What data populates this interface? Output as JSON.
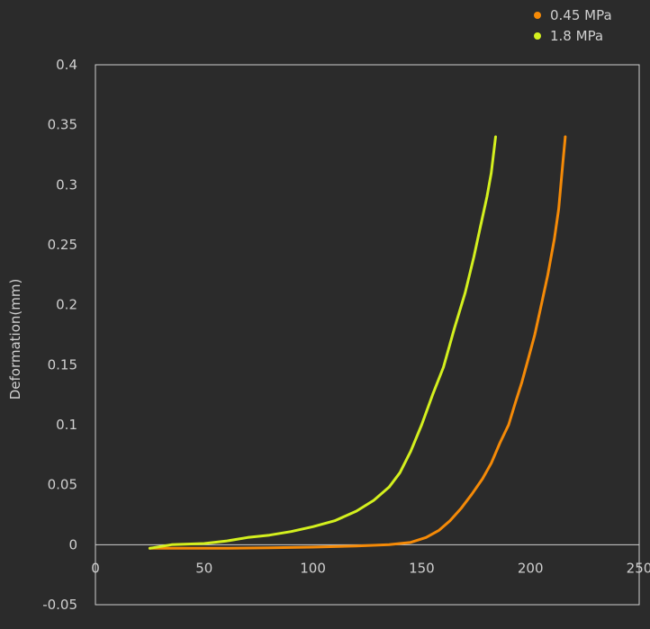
{
  "chart_data": {
    "type": "line",
    "title": "",
    "xlabel": "",
    "ylabel": "Deformation(mm)",
    "xlim": [
      0,
      250
    ],
    "ylim": [
      -0.05,
      0.4
    ],
    "x_ticks": [
      "0",
      "50",
      "100",
      "150",
      "200",
      "250"
    ],
    "y_ticks": [
      "-0.05",
      "0",
      "0.05",
      "0.1",
      "0.15",
      "0.2",
      "0.25",
      "0.3",
      "0.35",
      "0.4"
    ],
    "grid": false,
    "legend_position": "top-right",
    "series": [
      {
        "name": "0.45 MPa",
        "color": "#f58a07",
        "points": [
          [
            25,
            -0.003
          ],
          [
            40,
            -0.003
          ],
          [
            60,
            -0.003
          ],
          [
            80,
            -0.0025
          ],
          [
            100,
            -0.002
          ],
          [
            120,
            -0.001
          ],
          [
            135,
            0
          ],
          [
            145,
            0.002
          ],
          [
            152,
            0.006
          ],
          [
            158,
            0.012
          ],
          [
            163,
            0.02
          ],
          [
            168,
            0.03
          ],
          [
            173,
            0.042
          ],
          [
            178,
            0.055
          ],
          [
            182,
            0.068
          ],
          [
            186,
            0.085
          ],
          [
            190,
            0.1
          ],
          [
            193,
            0.118
          ],
          [
            196,
            0.135
          ],
          [
            199,
            0.155
          ],
          [
            202,
            0.175
          ],
          [
            205,
            0.2
          ],
          [
            208,
            0.225
          ],
          [
            211,
            0.255
          ],
          [
            213,
            0.28
          ],
          [
            214,
            0.3
          ],
          [
            215,
            0.32
          ],
          [
            216,
            0.34
          ]
        ]
      },
      {
        "name": "1.8 MPa",
        "color": "#d4f01e",
        "points": [
          [
            25,
            -0.003
          ],
          [
            35,
            0
          ],
          [
            50,
            0.001
          ],
          [
            60,
            0.003
          ],
          [
            70,
            0.006
          ],
          [
            80,
            0.008
          ],
          [
            90,
            0.011
          ],
          [
            100,
            0.015
          ],
          [
            110,
            0.02
          ],
          [
            120,
            0.028
          ],
          [
            128,
            0.037
          ],
          [
            135,
            0.048
          ],
          [
            140,
            0.06
          ],
          [
            145,
            0.078
          ],
          [
            150,
            0.1
          ],
          [
            155,
            0.125
          ],
          [
            160,
            0.148
          ],
          [
            165,
            0.18
          ],
          [
            170,
            0.21
          ],
          [
            174,
            0.24
          ],
          [
            177,
            0.265
          ],
          [
            180,
            0.29
          ],
          [
            182,
            0.31
          ],
          [
            184,
            0.34
          ]
        ]
      }
    ]
  }
}
